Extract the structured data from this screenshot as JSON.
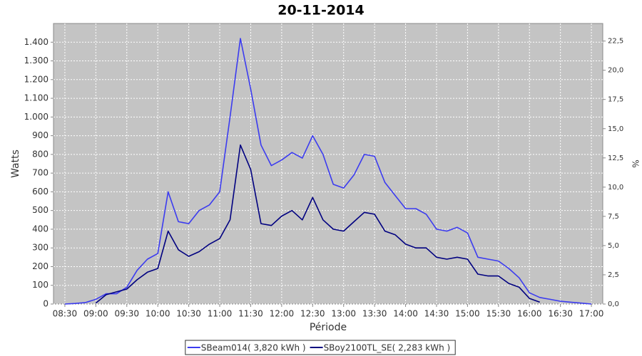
{
  "chart_data": {
    "type": "line",
    "title": "20-11-2014",
    "x_label": "Période",
    "y_label": "Watts",
    "y2_label": "%",
    "x": [
      "08:30",
      "08:40",
      "08:50",
      "09:00",
      "09:10",
      "09:20",
      "09:30",
      "09:40",
      "09:50",
      "10:00",
      "10:10",
      "10:20",
      "10:30",
      "10:40",
      "10:50",
      "11:00",
      "11:10",
      "11:20",
      "11:30",
      "11:40",
      "11:50",
      "12:00",
      "12:10",
      "12:20",
      "12:30",
      "12:40",
      "12:50",
      "13:00",
      "13:10",
      "13:20",
      "13:30",
      "13:40",
      "13:50",
      "14:00",
      "14:10",
      "14:20",
      "14:30",
      "14:40",
      "14:50",
      "15:00",
      "15:10",
      "15:20",
      "15:30",
      "15:40",
      "15:50",
      "16:00",
      "16:10",
      "16:20",
      "16:30",
      "16:40",
      "16:50",
      "17:00"
    ],
    "xlim": [
      "08:19",
      "17:11"
    ],
    "xticks": [
      "08:30",
      "09:00",
      "09:30",
      "10:00",
      "10:30",
      "11:00",
      "11:30",
      "12:00",
      "12:30",
      "13:00",
      "13:30",
      "14:00",
      "14:30",
      "15:00",
      "15:30",
      "16:00",
      "16:30",
      "17:00"
    ],
    "ylim": [
      0,
      1500
    ],
    "yticks": [
      0,
      100,
      200,
      300,
      400,
      500,
      600,
      700,
      800,
      900,
      {
        "value": 1000,
        "label": "1.000"
      },
      {
        "value": 1100,
        "label": "1.100"
      },
      {
        "value": 1200,
        "label": "1.200"
      },
      {
        "value": 1300,
        "label": "1.300"
      },
      {
        "value": 1400,
        "label": "1.400"
      }
    ],
    "y2lim": [
      0,
      24
    ],
    "y2ticks": [
      {
        "value": 0,
        "label": "0,0"
      },
      {
        "value": 2.5,
        "label": "2,5"
      },
      {
        "value": 5,
        "label": "5,0"
      },
      {
        "value": 7.5,
        "label": "7,5"
      },
      {
        "value": 10,
        "label": "10,0"
      },
      {
        "value": 12.5,
        "label": "12,5"
      },
      {
        "value": 15,
        "label": "15,0"
      },
      {
        "value": 17.5,
        "label": "17,5"
      },
      {
        "value": 20,
        "label": "20,0"
      },
      {
        "value": 22.5,
        "label": "22,5"
      }
    ],
    "grid": true,
    "legend": "bottom",
    "series": [
      {
        "name": "SBeam014( 3,820 kWh )",
        "color": "#3b3bf0",
        "values": [
          0,
          3,
          8,
          25,
          55,
          55,
          90,
          180,
          240,
          270,
          600,
          440,
          430,
          500,
          530,
          600,
          1000,
          1420,
          1150,
          850,
          740,
          770,
          810,
          780,
          900,
          800,
          640,
          620,
          690,
          800,
          790,
          650,
          580,
          510,
          510,
          480,
          400,
          390,
          410,
          380,
          250,
          240,
          230,
          190,
          140,
          60,
          35,
          25,
          15,
          10,
          5,
          0
        ]
      },
      {
        "name": "SBoy2100TL_SE( 2,283 kWh )",
        "color": "#000080",
        "values": [
          null,
          null,
          null,
          5,
          50,
          65,
          80,
          130,
          170,
          190,
          390,
          290,
          255,
          280,
          320,
          350,
          450,
          850,
          720,
          430,
          420,
          470,
          500,
          450,
          570,
          450,
          400,
          390,
          440,
          490,
          480,
          390,
          370,
          320,
          300,
          300,
          250,
          240,
          250,
          240,
          160,
          150,
          150,
          110,
          90,
          30,
          10,
          null,
          null,
          null,
          null,
          null
        ]
      }
    ]
  }
}
